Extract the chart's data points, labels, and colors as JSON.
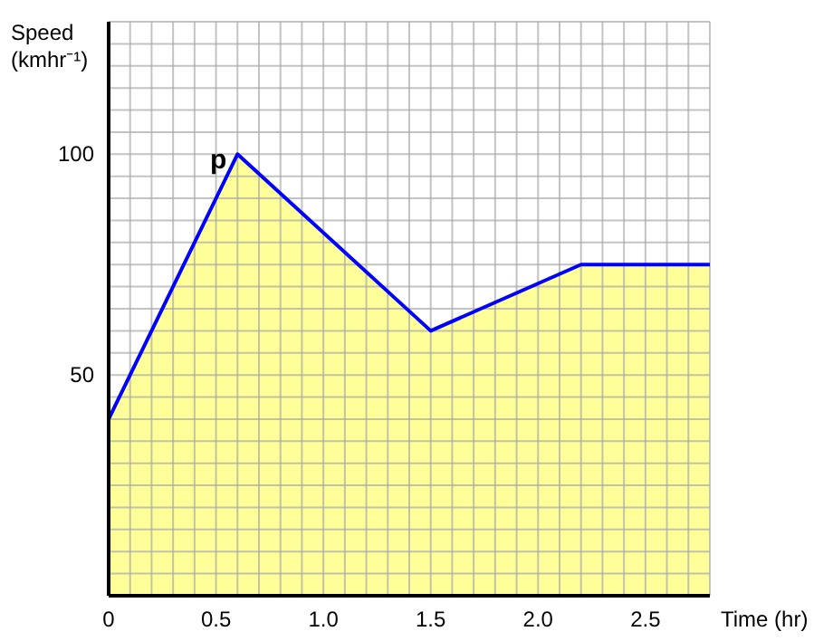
{
  "chart_data": {
    "type": "area",
    "xlabel": "Time (hr)",
    "ylabel": "Speed (kmhr⁻¹)",
    "x": [
      0,
      0.6,
      1.5,
      2.2,
      2.8
    ],
    "series": [
      {
        "color": "#ffff99",
        "values": [
          40,
          100,
          60,
          75,
          75
        ]
      },
      {
        "type": "line",
        "color": "#0000ff",
        "values": [
          40,
          100,
          60,
          75,
          75
        ]
      }
    ],
    "xlim": [
      0,
      2.8
    ],
    "xticks": [
      0,
      {
        "value": 0.1,
        "label": null
      },
      {
        "value": 0.2,
        "label": null
      },
      {
        "value": 0.3,
        "label": null
      },
      {
        "value": 0.4,
        "label": null
      },
      0.5,
      {
        "value": 0.6,
        "label": null
      },
      {
        "value": 0.7,
        "label": null
      },
      {
        "value": 0.8,
        "label": null
      },
      {
        "value": 0.9,
        "label": null
      },
      {
        "value": 1,
        "label": "1.0"
      },
      {
        "value": 1.1,
        "label": null
      },
      {
        "value": 1.2,
        "label": null
      },
      {
        "value": 1.3,
        "label": null
      },
      {
        "value": 1.4,
        "label": null
      },
      1.5,
      {
        "value": 1.6,
        "label": null
      },
      {
        "value": 1.7,
        "label": null
      },
      {
        "value": 1.8,
        "label": null
      },
      {
        "value": 1.9,
        "label": null
      },
      {
        "value": 2,
        "label": "2.0"
      },
      {
        "value": 2.1,
        "label": null
      },
      {
        "value": 2.2,
        "label": null
      },
      {
        "value": 2.3,
        "label": null
      },
      {
        "value": 2.4,
        "label": null
      },
      2.5,
      {
        "value": 2.6,
        "label": null
      },
      {
        "value": 2.7,
        "label": null
      },
      {
        "value": 2.8,
        "label": null
      }
    ],
    "ylim": [
      0,
      130
    ],
    "yticks": [
      {
        "value": 5,
        "label": null
      },
      {
        "value": 10,
        "label": null
      },
      {
        "value": 15,
        "label": null
      },
      {
        "value": 20,
        "label": null
      },
      {
        "value": 25,
        "label": null
      },
      {
        "value": 30,
        "label": null
      },
      {
        "value": 35,
        "label": null
      },
      {
        "value": 40,
        "label": null
      },
      {
        "value": 45,
        "label": null
      },
      50,
      {
        "value": 55,
        "label": null
      },
      {
        "value": 60,
        "label": null
      },
      {
        "value": 65,
        "label": null
      },
      {
        "value": 70,
        "label": null
      },
      {
        "value": 75,
        "label": null
      },
      {
        "value": 80,
        "label": null
      },
      {
        "value": 85,
        "label": null
      },
      {
        "value": 90,
        "label": null
      },
      {
        "value": 95,
        "label": null
      },
      100,
      {
        "value": 105,
        "label": null
      },
      {
        "value": 110,
        "label": null
      },
      {
        "value": 115,
        "label": null
      },
      {
        "value": 120,
        "label": null
      },
      {
        "value": 125,
        "label": null
      },
      {
        "value": 130,
        "label": null
      }
    ],
    "grid": true,
    "annotations": [
      {
        "text": "p",
        "x": 0.6,
        "y": 100
      }
    ]
  }
}
